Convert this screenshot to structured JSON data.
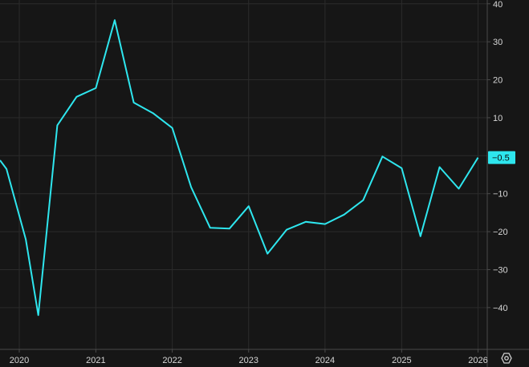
{
  "chart_data": {
    "type": "line",
    "title": "",
    "xlabel": "",
    "ylabel": "",
    "x": [
      "2019-10-01",
      "2019-11-01",
      "2020-02-01",
      "2020-04-01",
      "2020-07-01",
      "2020-10-01",
      "2021-01-01",
      "2021-04-01",
      "2021-07-01",
      "2021-10-01",
      "2022-01-01",
      "2022-04-01",
      "2022-07-01",
      "2022-10-01",
      "2023-01-01",
      "2023-04-01",
      "2023-07-01",
      "2023-10-01",
      "2024-01-01",
      "2024-04-01",
      "2024-07-01",
      "2024-10-01",
      "2025-01-01",
      "2025-04-01",
      "2025-07-01",
      "2025-10-01",
      "2026-01-01"
    ],
    "series": [
      {
        "values": [
          -1.2,
          -3.5,
          -22,
          -42,
          8,
          15.5,
          17.8,
          35.7,
          14,
          11.2,
          7.3,
          -8.3,
          -19,
          -19.2,
          -13.3,
          -25.8,
          -19.5,
          -17.4,
          -18,
          -15.5,
          -11.7,
          -0.2,
          -3.3,
          -21.2,
          -3,
          -8.7,
          -0.5
        ]
      }
    ],
    "xlim": [
      "2019-10-01",
      "2026-02-14"
    ],
    "ylim": [
      -51,
      41
    ],
    "y_ticks": [
      40,
      30,
      20,
      10,
      -10,
      -20,
      -30,
      -40
    ],
    "x_ticks": [
      "2020",
      "2021",
      "2022",
      "2023",
      "2024",
      "2025",
      "2026"
    ],
    "last_value_label": "−0.5",
    "grid": true,
    "legend": "none",
    "colors": {
      "line": "#2ee6ee",
      "background": "#161616",
      "grid": "#2b2b2b",
      "axis": "#4a4a4a",
      "text": "#d6d6d6"
    }
  },
  "toolbar": {
    "settings_icon": "gear-icon"
  }
}
